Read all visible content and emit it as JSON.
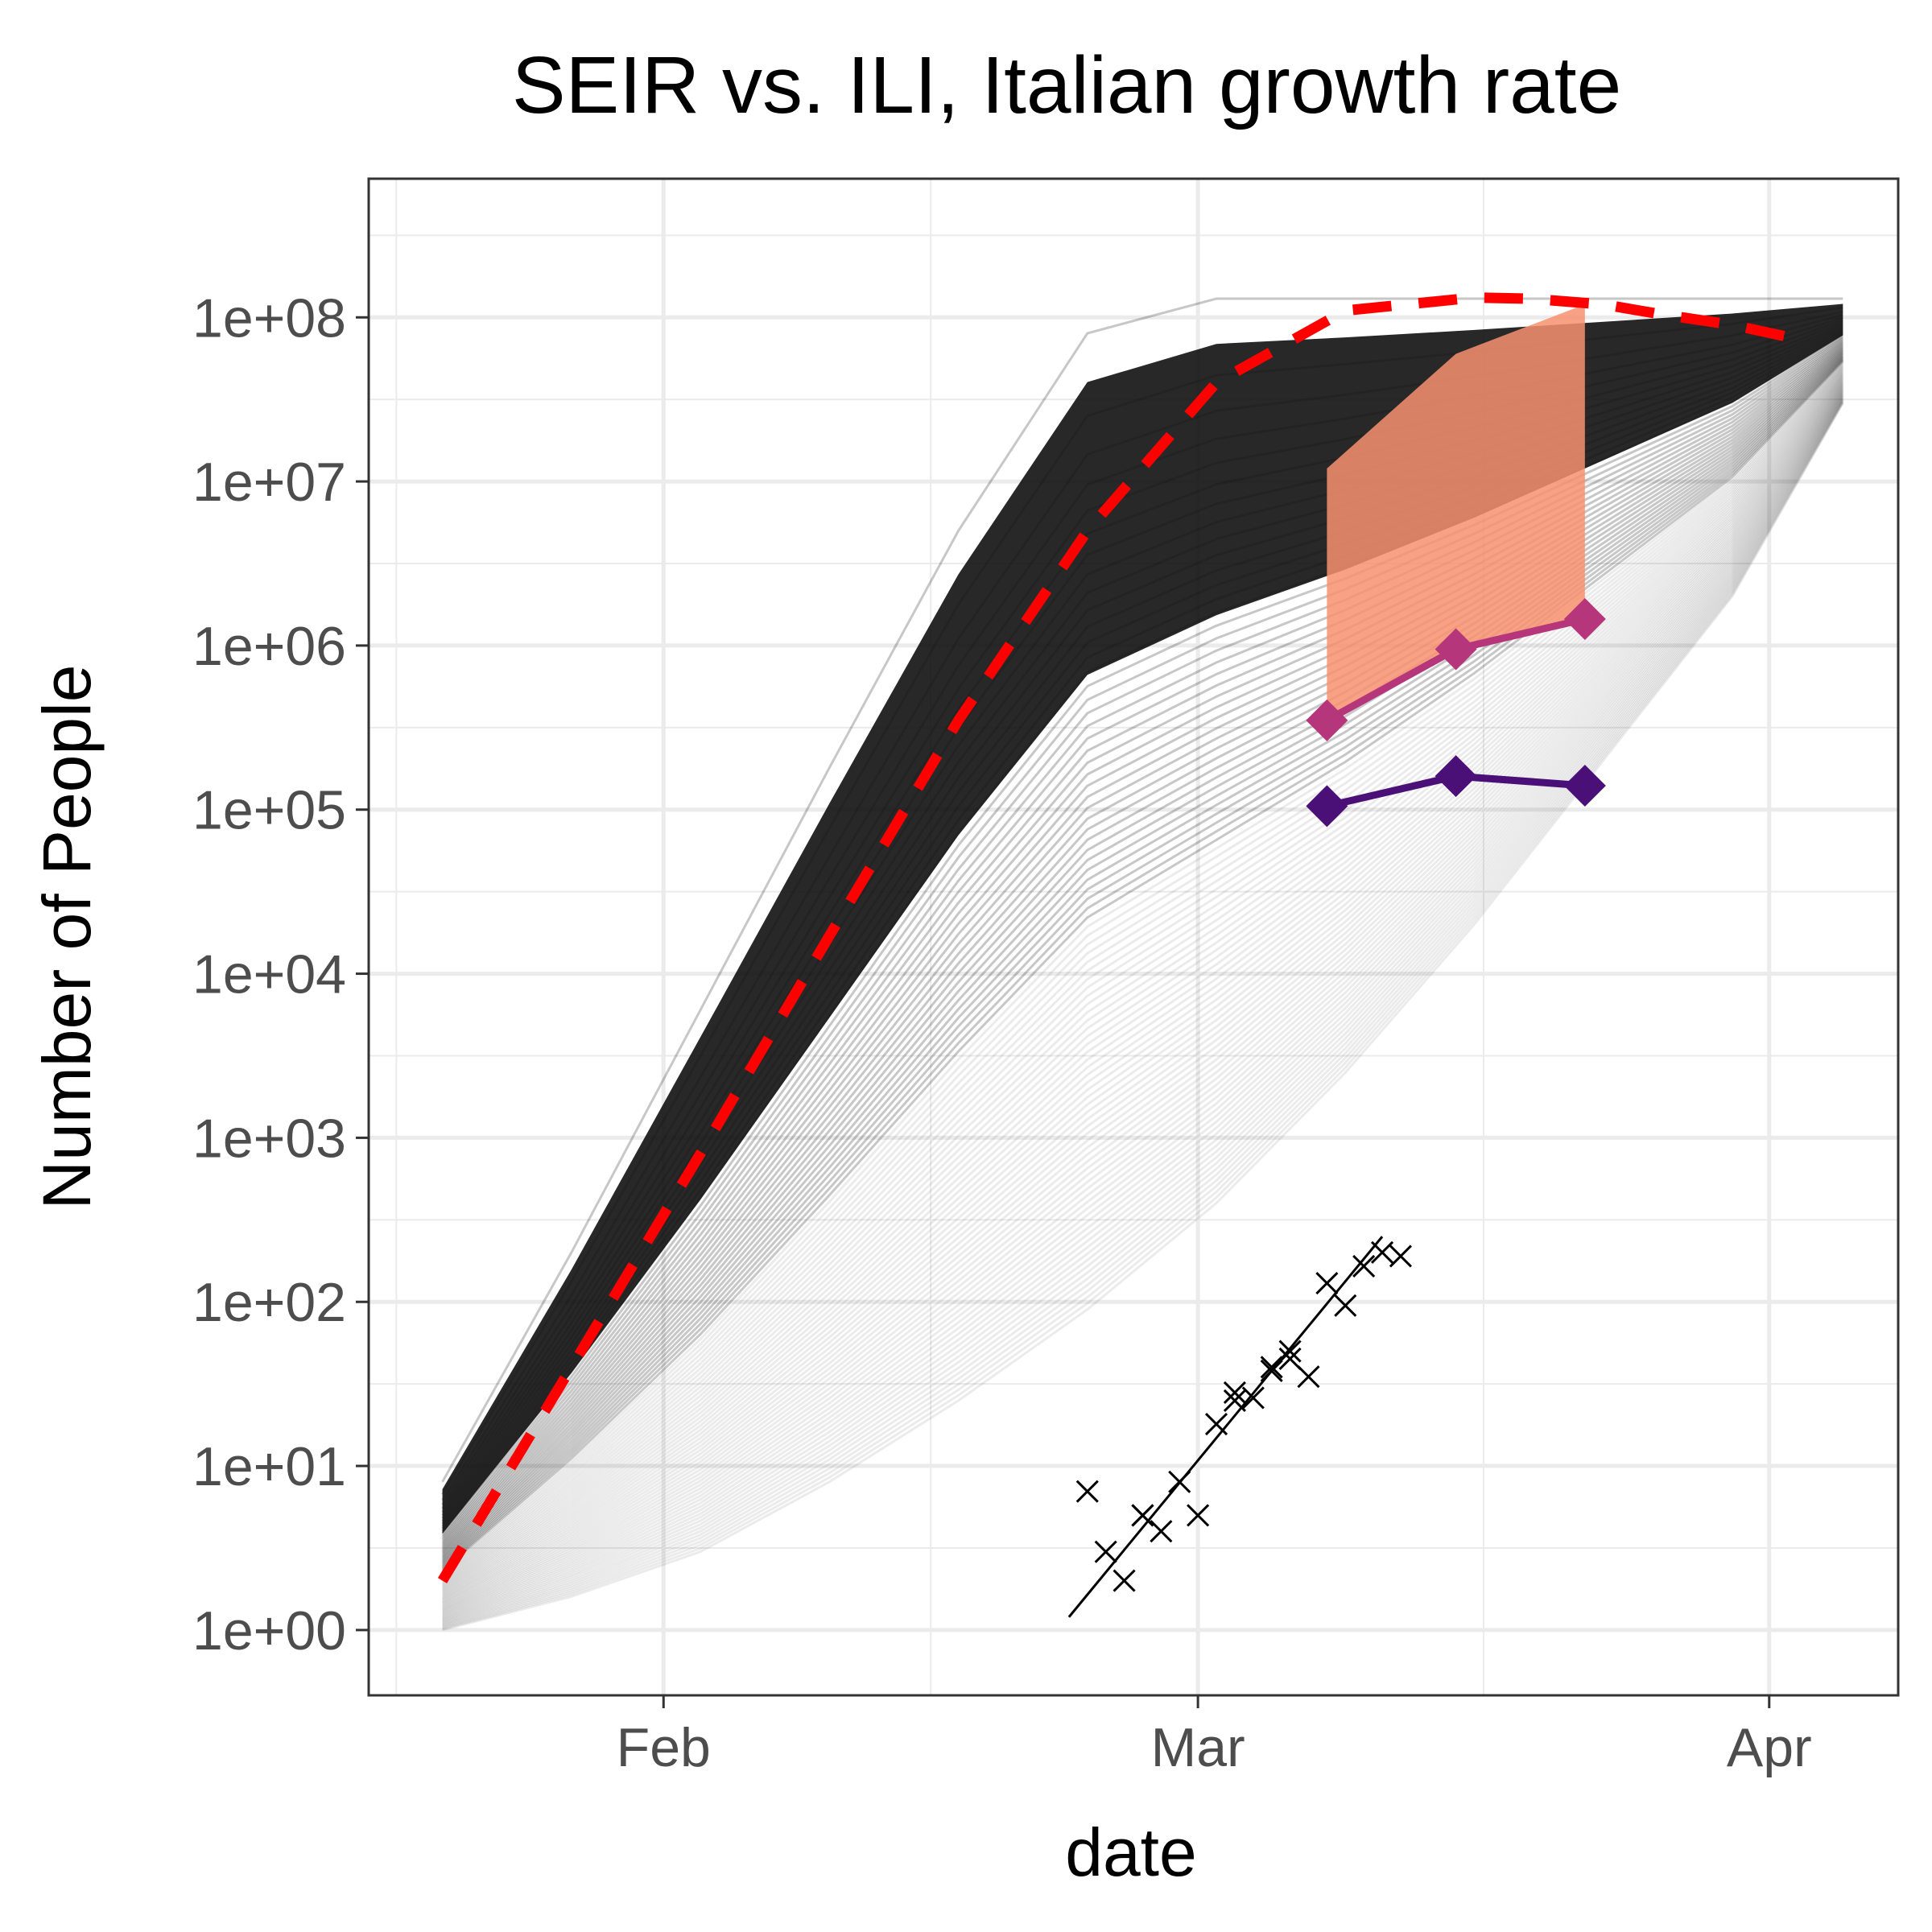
{
  "chart_data": {
    "type": "line",
    "title": "SEIR vs. ILI, Italian growth rate",
    "xlabel": "date",
    "ylabel": "Number of People",
    "x_scale": "date",
    "y_scale": "log10",
    "xlim": [
      "2020-01-16",
      "2020-04-08"
    ],
    "ylim": [
      0.4,
      700000000
    ],
    "x_ticks": [
      {
        "date": "2020-02-01",
        "label": "Feb"
      },
      {
        "date": "2020-03-01",
        "label": "Mar"
      },
      {
        "date": "2020-04-01",
        "label": "Apr"
      }
    ],
    "y_ticks": [
      {
        "value": 1,
        "label": "1e+00"
      },
      {
        "value": 10,
        "label": "1e+01"
      },
      {
        "value": 100,
        "label": "1e+02"
      },
      {
        "value": 1000,
        "label": "1e+03"
      },
      {
        "value": 10000,
        "label": "1e+04"
      },
      {
        "value": 100000,
        "label": "1e+05"
      },
      {
        "value": 1000000,
        "label": "1e+06"
      },
      {
        "value": 10000000,
        "label": "1e+07"
      },
      {
        "value": 100000000,
        "label": "1e+08"
      }
    ],
    "grid": true,
    "legend": "none",
    "colors": {
      "simulations": "#000000",
      "median": "#ff0000",
      "ribbon": "#f8906e",
      "upper_ili": "#b5367a",
      "lower_ili": "#4b1078",
      "observed": "#000000"
    },
    "series": [
      {
        "kind": "simulation-ensemble",
        "x": [
          "2020-01-20",
          "2020-01-27",
          "2020-02-03",
          "2020-02-10",
          "2020-02-17",
          "2020-02-24",
          "2020-03-02",
          "2020-03-09",
          "2020-03-16",
          "2020-03-23",
          "2020-03-30",
          "2020-04-05"
        ],
        "y_low": [
          1,
          1.6,
          3,
          8,
          25,
          90,
          400,
          2500,
          20000,
          200000,
          2000000,
          30000000
        ],
        "y_high": [
          8,
          200,
          6000,
          180000,
          5000000,
          80000000,
          130000000,
          130000000,
          130000000,
          130000000,
          130000000,
          130000000
        ]
      },
      {
        "kind": "median-dashed",
        "x": [
          "2020-01-20",
          "2020-01-27",
          "2020-02-03",
          "2020-02-10",
          "2020-02-17",
          "2020-02-24",
          "2020-03-02",
          "2020-03-09",
          "2020-03-16",
          "2020-03-19",
          "2020-03-23",
          "2020-03-26",
          "2020-03-30",
          "2020-04-03"
        ],
        "y": [
          2,
          40,
          800,
          17000,
          350000,
          5000000,
          40000000,
          110000000,
          132000000,
          130000000,
          120000000,
          105000000,
          90000000,
          72000000
        ]
      },
      {
        "kind": "ribbon",
        "x": [
          "2020-03-08",
          "2020-03-15",
          "2020-03-22"
        ],
        "y_low": [
          350000,
          950000,
          1450000
        ],
        "y_high": [
          12000000,
          60000000,
          120000000
        ]
      },
      {
        "kind": "upper-ili",
        "x": [
          "2020-03-08",
          "2020-03-15",
          "2020-03-22"
        ],
        "y": [
          350000,
          950000,
          1450000
        ]
      },
      {
        "kind": "lower-ili",
        "x": [
          "2020-03-08",
          "2020-03-15",
          "2020-03-22"
        ],
        "y": [
          105000,
          160000,
          140000
        ]
      },
      {
        "kind": "observed-cases",
        "x": [
          "2020-02-24",
          "2020-02-25",
          "2020-02-26",
          "2020-02-27",
          "2020-02-27",
          "2020-02-28",
          "2020-02-29",
          "2020-03-01",
          "2020-03-02",
          "2020-03-03",
          "2020-03-03",
          "2020-03-04",
          "2020-03-05",
          "2020-03-05",
          "2020-03-06",
          "2020-03-06",
          "2020-03-07",
          "2020-03-08",
          "2020-03-09",
          "2020-03-10",
          "2020-03-11",
          "2020-03-12"
        ],
        "y": [
          7,
          3,
          2,
          5,
          5,
          4,
          8,
          5,
          18,
          25,
          28,
          26,
          38,
          40,
          45,
          50,
          35,
          130,
          95,
          165,
          200,
          190
        ]
      },
      {
        "kind": "observed-fit",
        "x": [
          "2020-02-23",
          "2020-03-11"
        ],
        "y": [
          1.2,
          250
        ]
      }
    ]
  }
}
